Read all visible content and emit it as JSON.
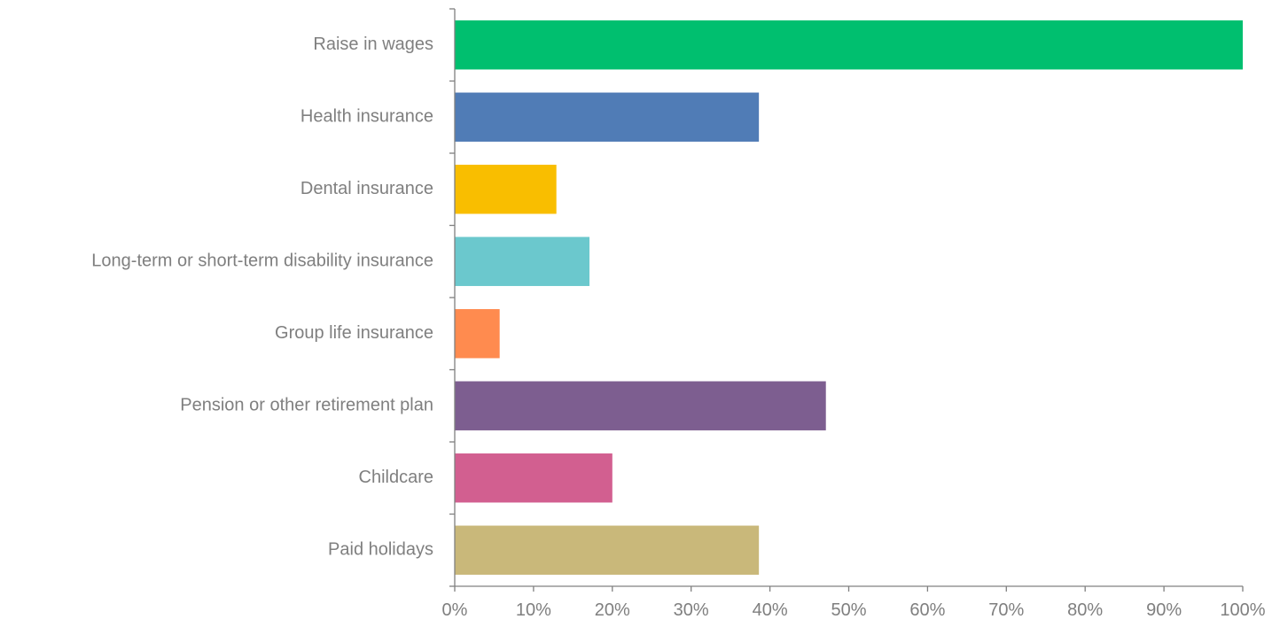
{
  "chart_data": {
    "type": "bar",
    "orientation": "horizontal",
    "title": "",
    "xlabel": "",
    "ylabel": "",
    "categories": [
      "Raise in wages",
      "Health insurance",
      "Dental insurance",
      "Long-term or short-term disability insurance",
      "Group life insurance",
      "Pension or other retirement plan",
      "Childcare",
      "Paid holidays"
    ],
    "values": [
      100,
      38.6,
      12.9,
      17.1,
      5.7,
      47.1,
      20.0,
      38.6
    ],
    "colors": [
      "#00bf6f",
      "#507cb6",
      "#f9be00",
      "#6bc8cd",
      "#ff8b4f",
      "#7d5e90",
      "#d25f90",
      "#c9b87a"
    ],
    "xlim": [
      0,
      100
    ],
    "xticks": [
      0,
      10,
      20,
      30,
      40,
      50,
      60,
      70,
      80,
      90,
      100
    ],
    "tick_format": "{v}%",
    "grid": false,
    "legend": "none"
  }
}
